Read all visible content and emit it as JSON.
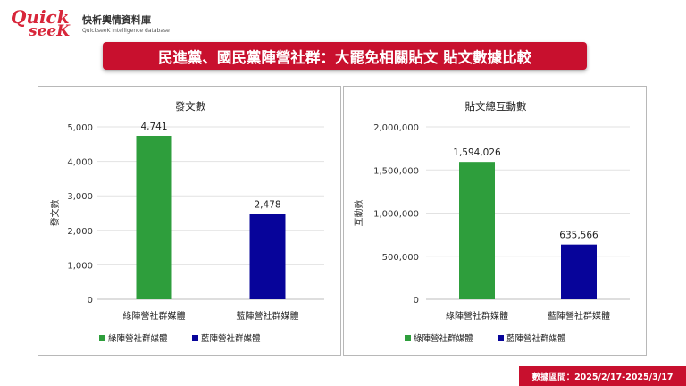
{
  "brand": {
    "logo_word_1": "Quick",
    "logo_word_2": "seeK",
    "name_zh": "快析輿情資料庫",
    "name_en": "QuickseeK intelligence database"
  },
  "banner": {
    "title": "民進黨、國民黨陣營社群：大罷免相關貼文  貼文數據比較"
  },
  "footer": {
    "date_range": "數據區間：2025/2/17-2025/3/17"
  },
  "colors": {
    "green": "#2e9e3c",
    "blue": "#07049a",
    "brand_red": "#c8102e"
  },
  "chart_data": [
    {
      "type": "bar",
      "title": "發文數",
      "xlabel": "",
      "ylabel": "發文數",
      "categories": [
        "綠陣營社群媒體",
        "藍陣營社群媒體"
      ],
      "values": [
        4741,
        2478
      ],
      "value_labels": [
        "4,741",
        "2,478"
      ],
      "colors": [
        "#2e9e3c",
        "#07049a"
      ],
      "ylim": [
        0,
        5000
      ],
      "yticks": [
        0,
        1000,
        2000,
        3000,
        4000,
        5000
      ],
      "ytick_labels": [
        "0",
        "1,000",
        "2,000",
        "3,000",
        "4,000",
        "5,000"
      ],
      "grid": true,
      "legend": [
        "綠陣營社群媒體",
        "藍陣營社群媒體"
      ],
      "legend_position": "bottom"
    },
    {
      "type": "bar",
      "title": "貼文總互動數",
      "xlabel": "",
      "ylabel": "互動數",
      "categories": [
        "綠陣營社群媒體",
        "藍陣營社群媒體"
      ],
      "values": [
        1594026,
        635566
      ],
      "value_labels": [
        "1,594,026",
        "635,566"
      ],
      "colors": [
        "#2e9e3c",
        "#07049a"
      ],
      "ylim": [
        0,
        2000000
      ],
      "yticks": [
        0,
        500000,
        1000000,
        1500000,
        2000000
      ],
      "ytick_labels": [
        "0",
        "500,000",
        "1,000,000",
        "1,500,000",
        "2,000,000"
      ],
      "grid": true,
      "legend": [
        "綠陣營社群媒體",
        "藍陣營社群媒體"
      ],
      "legend_position": "bottom"
    }
  ]
}
